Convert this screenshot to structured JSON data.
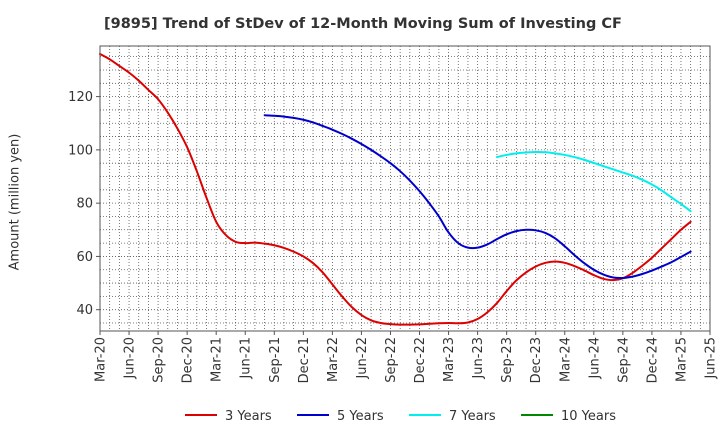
{
  "chart_data": {
    "type": "line",
    "title": "[9895]  Trend of StDev of 12-Month Moving Sum of Investing CF",
    "xlabel": "",
    "ylabel": "Amount (million yen)",
    "x_ticks": [
      "Mar-20",
      "Jun-20",
      "Sep-20",
      "Dec-20",
      "Mar-21",
      "Jun-21",
      "Sep-21",
      "Dec-21",
      "Mar-22",
      "Jun-22",
      "Sep-22",
      "Dec-22",
      "Mar-23",
      "Jun-23",
      "Sep-23",
      "Dec-23",
      "Mar-24",
      "Jun-24",
      "Sep-24",
      "Dec-24",
      "Mar-25",
      "Jun-25"
    ],
    "y_ticks": [
      40,
      60,
      80,
      100,
      120
    ],
    "ylim": [
      32,
      139
    ],
    "grid": true,
    "legend_position": "bottom",
    "series": [
      {
        "name": "3 Years",
        "color": "#dd0000",
        "points": [
          [
            "2020-03",
            136
          ],
          [
            "2020-04",
            134
          ],
          [
            "2020-05",
            131.5
          ],
          [
            "2020-06",
            129
          ],
          [
            "2020-07",
            126
          ],
          [
            "2020-08",
            122.5
          ],
          [
            "2020-09",
            119
          ],
          [
            "2020-10",
            114
          ],
          [
            "2020-11",
            108
          ],
          [
            "2020-12",
            101
          ],
          [
            "2021-01",
            92
          ],
          [
            "2021-02",
            82
          ],
          [
            "2021-03",
            73
          ],
          [
            "2021-04",
            68
          ],
          [
            "2021-05",
            65.5
          ],
          [
            "2021-06",
            65
          ],
          [
            "2021-07",
            65.2
          ],
          [
            "2021-08",
            64.8
          ],
          [
            "2021-09",
            64.2
          ],
          [
            "2021-10",
            63.2
          ],
          [
            "2021-11",
            61.8
          ],
          [
            "2021-12",
            60
          ],
          [
            "2022-01",
            57.5
          ],
          [
            "2022-02",
            54
          ],
          [
            "2022-03",
            49.5
          ],
          [
            "2022-04",
            45
          ],
          [
            "2022-05",
            41
          ],
          [
            "2022-06",
            38
          ],
          [
            "2022-07",
            36
          ],
          [
            "2022-08",
            35
          ],
          [
            "2022-09",
            34.6
          ],
          [
            "2022-10",
            34.4
          ],
          [
            "2022-11",
            34.4
          ],
          [
            "2022-12",
            34.5
          ],
          [
            "2023-01",
            34.7
          ],
          [
            "2023-02",
            34.9
          ],
          [
            "2023-03",
            35
          ],
          [
            "2023-04",
            34.9
          ],
          [
            "2023-05",
            35.2
          ],
          [
            "2023-06",
            36.5
          ],
          [
            "2023-07",
            39
          ],
          [
            "2023-08",
            42.5
          ],
          [
            "2023-09",
            47
          ],
          [
            "2023-10",
            51
          ],
          [
            "2023-11",
            54
          ],
          [
            "2023-12",
            56.2
          ],
          [
            "2024-01",
            57.6
          ],
          [
            "2024-02",
            58.1
          ],
          [
            "2024-03",
            57.6
          ],
          [
            "2024-04",
            56.4
          ],
          [
            "2024-05",
            54.8
          ],
          [
            "2024-06",
            53
          ],
          [
            "2024-07",
            51.6
          ],
          [
            "2024-08",
            51.1
          ],
          [
            "2024-09",
            51.8
          ],
          [
            "2024-10",
            53.8
          ],
          [
            "2024-11",
            56.5
          ],
          [
            "2024-12",
            59.5
          ],
          [
            "2025-01",
            63
          ],
          [
            "2025-02",
            66.5
          ],
          [
            "2025-03",
            70
          ],
          [
            "2025-04",
            73
          ]
        ]
      },
      {
        "name": "5 Years",
        "color": "#0000cc",
        "points": [
          [
            "2021-08",
            113
          ],
          [
            "2021-09",
            112.8
          ],
          [
            "2021-10",
            112.5
          ],
          [
            "2021-11",
            112
          ],
          [
            "2021-12",
            111.3
          ],
          [
            "2022-01",
            110.3
          ],
          [
            "2022-02",
            109
          ],
          [
            "2022-03",
            107.6
          ],
          [
            "2022-04",
            106
          ],
          [
            "2022-05",
            104.2
          ],
          [
            "2022-06",
            102.2
          ],
          [
            "2022-07",
            100
          ],
          [
            "2022-08",
            97.6
          ],
          [
            "2022-09",
            95
          ],
          [
            "2022-10",
            92
          ],
          [
            "2022-11",
            88.5
          ],
          [
            "2022-12",
            84.5
          ],
          [
            "2023-01",
            80
          ],
          [
            "2023-02",
            75
          ],
          [
            "2023-03",
            69
          ],
          [
            "2023-04",
            65
          ],
          [
            "2023-05",
            63.3
          ],
          [
            "2023-06",
            63.3
          ],
          [
            "2023-07",
            64.5
          ],
          [
            "2023-08",
            66.5
          ],
          [
            "2023-09",
            68.3
          ],
          [
            "2023-10",
            69.5
          ],
          [
            "2023-11",
            70
          ],
          [
            "2023-12",
            69.8
          ],
          [
            "2024-01",
            68.8
          ],
          [
            "2024-02",
            66.8
          ],
          [
            "2024-03",
            63.8
          ],
          [
            "2024-04",
            60.5
          ],
          [
            "2024-05",
            57.5
          ],
          [
            "2024-06",
            55
          ],
          [
            "2024-07",
            53.2
          ],
          [
            "2024-08",
            52.1
          ],
          [
            "2024-09",
            51.9
          ],
          [
            "2024-10",
            52.4
          ],
          [
            "2024-11",
            53.4
          ],
          [
            "2024-12",
            54.7
          ],
          [
            "2025-01",
            56.2
          ],
          [
            "2025-02",
            57.8
          ],
          [
            "2025-03",
            59.8
          ],
          [
            "2025-04",
            61.8
          ]
        ]
      },
      {
        "name": "7 Years",
        "color": "#00eeee",
        "points": [
          [
            "2023-08",
            97.3
          ],
          [
            "2023-09",
            98.1
          ],
          [
            "2023-10",
            98.7
          ],
          [
            "2023-11",
            99
          ],
          [
            "2023-12",
            99.2
          ],
          [
            "2024-01",
            99.1
          ],
          [
            "2024-02",
            98.7
          ],
          [
            "2024-03",
            98.1
          ],
          [
            "2024-04",
            97.3
          ],
          [
            "2024-05",
            96.3
          ],
          [
            "2024-06",
            95.1
          ],
          [
            "2024-07",
            93.9
          ],
          [
            "2024-08",
            92.7
          ],
          [
            "2024-09",
            91.5
          ],
          [
            "2024-10",
            90.3
          ],
          [
            "2024-11",
            88.8
          ],
          [
            "2024-12",
            87
          ],
          [
            "2025-01",
            84.8
          ],
          [
            "2025-02",
            82.2
          ],
          [
            "2025-03",
            79.7
          ],
          [
            "2025-04",
            77
          ]
        ]
      },
      {
        "name": "10 Years",
        "color": "#008800",
        "points": []
      }
    ]
  }
}
